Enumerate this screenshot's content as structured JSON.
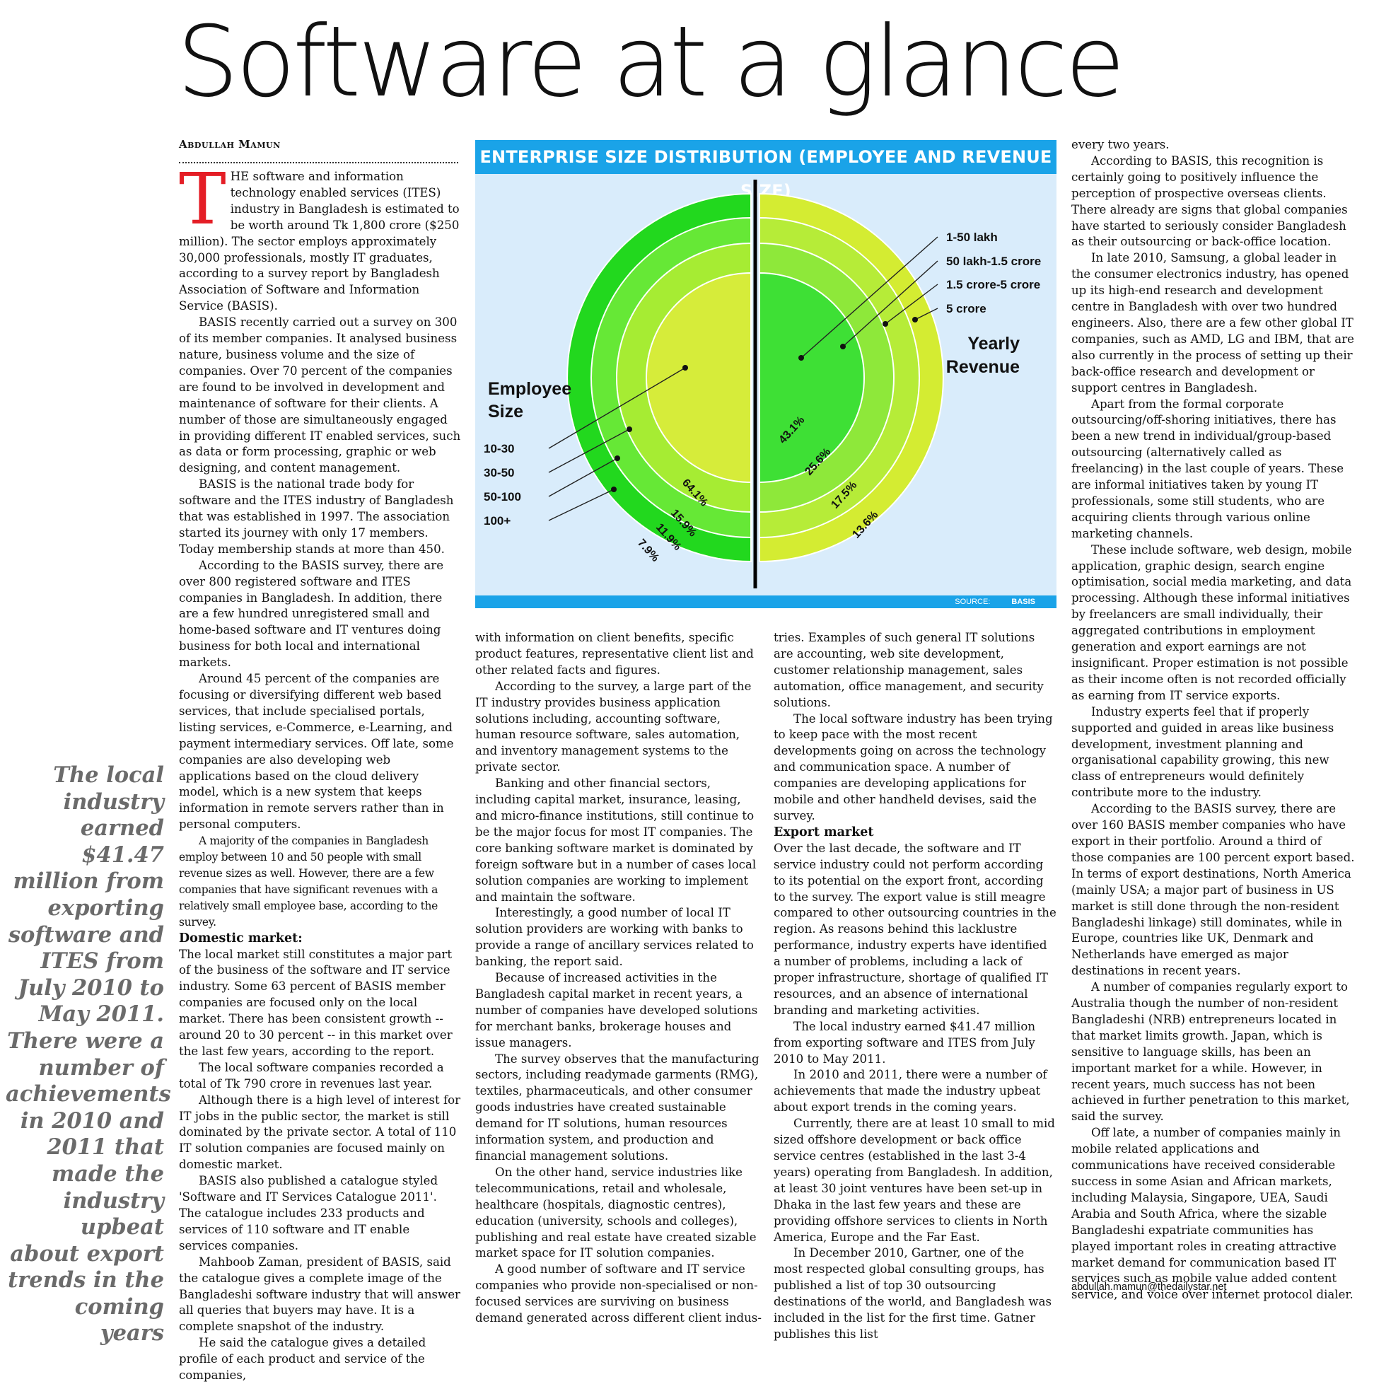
{
  "headline": "Software at a glance",
  "byline": "Abdullah Mamun",
  "dropcap": "T",
  "col1": [
    "HE software and information technology enabled services (ITES) industry in Bangladesh is estimated to be worth around Tk 1,800 crore ($250 million). The sector employs approximately 30,000 professionals, mostly IT graduates, according to a survey report by Bangladesh Association of Software and Information Service (BASIS).",
    "BASIS recently carried out a survey on 300 of its member companies. It analysed business nature, business volume and the size of companies. Over 70 percent of the companies are found to be involved in development and maintenance of software for their clients. A number of those are simultaneously engaged in providing different IT enabled services, such as data or form processing, graphic or web designing, and content management.",
    "BASIS is the national trade body for software and the ITES industry of Bangladesh that was established in 1997. The association started its journey with only 17 members. Today membership stands at more than 450.",
    "According to the BASIS survey, there are over 800 registered software and ITES companies in Bangladesh. In addition, there are a few hundred unregistered small and home-based software and IT ventures doing business for both local and international markets.",
    "Around 45 percent of the companies are focusing or diversifying different web based services, that include specialised portals, listing services, e-Commerce, e-Learning, and payment intermediary services. Off late, some companies are also developing web applications based on the cloud delivery model, which is a new system that keeps information in remote servers rather than in personal computers.",
    "A majority of the companies in Bangladesh employ between 10 and 50 people with small revenue sizes as well. However, there are a few companies that have significant revenues with a relatively small employee base, according to the survey.",
    "Domestic market:",
    "The local market still constitutes a major part of the business of the software and IT service industry. Some 63 percent of BASIS member companies are focused only on the local market. There has been consistent growth -- around 20 to 30 percent -- in this market over the last few years, according to the report.",
    "The local software companies recorded a total of Tk 790 crore in revenues last year.",
    "Although there is a high level of interest for IT jobs in the public sector, the market is still dominated by the private sector. A total of 110 IT solution companies are focused mainly on domestic market.",
    "BASIS also published a catalogue styled 'Software and IT Services Catalogue 2011'. The catalogue includes 233 products and services of 110 software and IT enable services companies.",
    "Mahboob Zaman, president of BASIS, said the catalogue gives a complete image of the Bangladeshi software industry that will answer all queries that buyers may have. It is a complete snapshot of the industry.",
    "He said the catalogue gives a detailed profile of each product and service of the companies,"
  ],
  "col2": [
    "with information on client benefits, specific product features, representative client list and other related facts and figures.",
    "According to the survey, a large part of the IT industry provides business application solutions including, accounting software, human resource software, sales automation, and inventory management systems to the private sector.",
    "Banking and other financial sectors, including capital market, insurance, leasing, and micro-finance institutions, still continue to be the major focus for most IT companies. The core banking software market is dominated by foreign software but in a number of cases local solution companies are working to implement and maintain the software.",
    "Interestingly, a good number of local IT solution providers are working with banks to provide a range of ancillary services related to banking, the report said.",
    "Because of increased activities in the Bangladesh capital market in recent years, a number of companies have developed solutions for merchant banks, brokerage houses and issue managers.",
    "The survey observes that the manufacturing sectors, including readymade garments (RMG), textiles, pharmaceuticals, and other consumer goods industries have created sustainable demand for IT solutions, human resources information system, and production and financial management solutions.",
    "On the other hand, service industries like telecommunications, retail and wholesale, healthcare (hospitals, diagnostic centres), education (university, schools and colleges), publishing and real estate have created sizable market space for IT solution companies.",
    "A good number of software and IT service companies who provide non-specialised or non-focused services are surviving on business demand generated across different client indus-"
  ],
  "col3": [
    "tries. Examples of such general IT solutions are accounting, web site development, customer relationship management, sales automation, office management, and security solutions.",
    "The local software industry has been trying to keep pace with the most recent developments going on across the technology and communication space. A number of companies are developing applications for mobile and other handheld devises, said the survey.",
    "Export market",
    "Over the last decade, the software and IT service industry could not perform according to its potential on the export front, according to the survey. The export value is still meagre compared to other outsourcing countries in the region. As reasons behind this lacklustre performance, industry experts have identified a number of problems, including a lack of proper infrastructure, shortage of qualified IT resources, and an absence of international branding and marketing activities.",
    "The local industry earned $41.47 million from exporting software and ITES from July 2010 to May 2011.",
    "In 2010 and 2011, there were a number of achievements that made the industry upbeat about export trends in the coming years.",
    "Currently, there are at least 10 small to mid sized offshore development or back office service centres (established in the last 3-4 years) operating from Bangladesh. In addition, at least 30 joint ventures have been set-up in Dhaka in the last few years and these are providing offshore services to clients in North America, Europe and the Far East.",
    "In December 2010, Gartner, one of the most respected global consulting groups, has published a list of top 30 outsourcing destinations of the world, and Bangladesh was included in the list for the first time. Gatner publishes this list"
  ],
  "col4": [
    "every two years.",
    "According to BASIS, this recognition is certainly going to positively influence the perception of prospective overseas clients. There already are signs that global companies have started to seriously consider Bangladesh as their outsourcing or back-office location.",
    "In late 2010, Samsung, a global leader in the consumer electronics industry, has opened up its high-end research and development centre in Bangladesh with over two hundred engineers. Also, there are a few other global IT companies, such as AMD, LG and IBM, that are also currently in the process of setting up their back-office research and development or support centres in Bangladesh.",
    "Apart from the formal corporate outsourcing/off-shoring initiatives, there has been a new trend in individual/group-based outsourcing (alternatively called as freelancing) in the last couple of years. These are informal initiatives taken by young IT professionals, some still students, who are acquiring clients through various online marketing channels.",
    "These include software, web design, mobile application, graphic design, search engine optimisation, social media marketing, and data processing. Although these informal initiatives by freelancers are small individually, their aggregated contributions in employment generation and export earnings are not insignificant. Proper estimation is not possible as their income often is not recorded officially as earning from IT service exports.",
    "Industry experts feel that if properly supported and guided in areas like business development, investment planning and organisational capability growing, this new class of entrepreneurs would definitely contribute more to the industry.",
    "According to the BASIS survey, there are over 160 BASIS member companies who have export in their portfolio. Around a third of those companies are 100 percent export based. In terms of export destinations, North America (mainly USA; a major part of business in US market is still done through the non-resident Bangladeshi linkage) still dominates, while in Europe, countries like UK, Denmark and Netherlands have emerged as major destinations in recent years.",
    "A number of companies regularly export to Australia though the number of non-resident Bangladeshi (NRB) entrepreneurs located in that market limits growth. Japan, which is sensitive to language skills, has been an important market for a while. However, in recent years, much success has not been achieved in further penetration to this market, said the survey.",
    "Off late, a number of companies mainly in mobile related applications and communications have received considerable success in some Asian and African markets, including Malaysia, Singapore, UEA, Saudi Arabia and South Africa, where the sizable Bangladeshi expatriate communities has played important roles in creating attractive market demand for communication based IT services such as mobile value added content service, and voice over internet protocol dialer."
  ],
  "pullquote": "The local industry earned $41.47 million from exporting software and ITES from July 2010 to May 2011. There were a number of achievements in 2010 and 2011 that made the industry upbeat about export trends in the coming years",
  "email": "abdullah.mamun@thedailystar.net",
  "colors": {
    "title_bar": "#1aa3e8",
    "chart_bg": "#d9ecfb",
    "left_ring_outer": "#22d81e",
    "left_ring_2": "#66e836",
    "left_ring_3": "#a6ec33",
    "left_core": "#d6ec3a",
    "right_ring_outer": "#d4ec32",
    "right_ring_2": "#b6ec38",
    "right_ring_3": "#8ee83a",
    "right_core": "#3ee035",
    "dropcap": "#e41e26",
    "pullquote": "#6b6b6b"
  },
  "chart_data": {
    "type": "pie",
    "title": "ENTERPRISE SIZE DISTRIBUTION (EMPLOYEE AND REVENUE SIZE)",
    "source_label": "SOURCE:",
    "source_value": "BASIS",
    "series": [
      {
        "name": "Employee Size",
        "label_line1": "Employee",
        "label_line2": "Size",
        "categories": [
          "10-30",
          "30-50",
          "50-100",
          "100+"
        ],
        "values": [
          64.1,
          15.9,
          11.9,
          7.9
        ],
        "value_labels": [
          "64.1%",
          "15.9%",
          "11.9%",
          "7.9%"
        ]
      },
      {
        "name": "Yearly Revenue",
        "label_line1": "Yearly",
        "label_line2": "Revenue",
        "categories": [
          "1-50 lakh",
          "50 lakh-1.5 crore",
          "1.5 crore-5 crore",
          "5 crore"
        ],
        "values": [
          43.1,
          25.6,
          17.5,
          13.6
        ],
        "value_labels": [
          "43.1%",
          "25.6%",
          "17.5%",
          "13.6%"
        ]
      }
    ]
  }
}
